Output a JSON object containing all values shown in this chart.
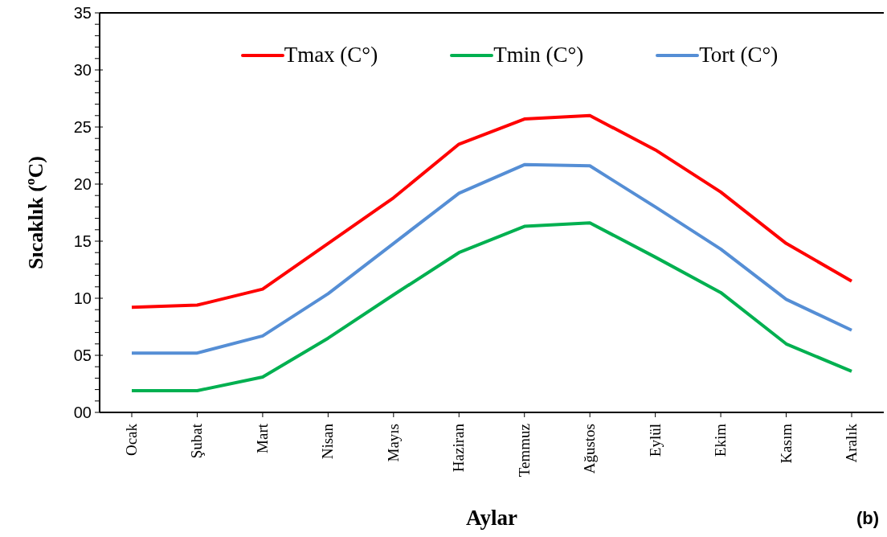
{
  "chart_data": {
    "type": "line",
    "xlabel": "Aylar",
    "ylabel": "Sıcaklık (ºC)",
    "annotations": [
      "(b)"
    ],
    "categories": [
      "Ocak",
      "Şubat",
      "Mart",
      "Nisan",
      "Mayıs",
      "Haziran",
      "Temmuz",
      "Ağustos",
      "Eylül",
      "Ekim",
      "Kasım",
      "Aralık"
    ],
    "series": [
      {
        "name": "Tmax (C°)",
        "color": "#ff0000",
        "values": [
          9.2,
          9.4,
          10.8,
          14.8,
          18.8,
          23.5,
          25.7,
          26.0,
          23.0,
          19.3,
          14.8,
          11.5
        ]
      },
      {
        "name": "Tmin (C°)",
        "color": "#00b050",
        "values": [
          1.9,
          1.9,
          3.1,
          6.5,
          10.3,
          14.0,
          16.3,
          16.6,
          13.6,
          10.5,
          6.0,
          3.6
        ]
      },
      {
        "name": "Tort (C°)",
        "color": "#558ed5",
        "values": [
          5.2,
          5.2,
          6.7,
          10.4,
          14.8,
          19.2,
          21.7,
          21.6,
          18.0,
          14.3,
          9.9,
          7.2
        ]
      }
    ],
    "ylim": [
      0,
      35
    ],
    "yticks": [
      {
        "value": 0,
        "label": "00"
      },
      {
        "value": 1,
        "label": null
      },
      {
        "value": 2,
        "label": null
      },
      {
        "value": 3,
        "label": null
      },
      {
        "value": 4,
        "label": null
      },
      {
        "value": 5,
        "label": "05"
      },
      {
        "value": 6,
        "label": null
      },
      {
        "value": 7,
        "label": null
      },
      {
        "value": 8,
        "label": null
      },
      {
        "value": 9,
        "label": null
      },
      10,
      {
        "value": 11,
        "label": null
      },
      {
        "value": 12,
        "label": null
      },
      {
        "value": 13,
        "label": null
      },
      {
        "value": 14,
        "label": null
      },
      15,
      {
        "value": 16,
        "label": null
      },
      {
        "value": 17,
        "label": null
      },
      {
        "value": 18,
        "label": null
      },
      {
        "value": 19,
        "label": null
      },
      20,
      {
        "value": 21,
        "label": null
      },
      {
        "value": 22,
        "label": null
      },
      {
        "value": 23,
        "label": null
      },
      {
        "value": 24,
        "label": null
      },
      25,
      {
        "value": 26,
        "label": null
      },
      {
        "value": 27,
        "label": null
      },
      {
        "value": 28,
        "label": null
      },
      {
        "value": 29,
        "label": null
      },
      30,
      {
        "value": 31,
        "label": null
      },
      {
        "value": 32,
        "label": null
      },
      {
        "value": 33,
        "label": null
      },
      {
        "value": 34,
        "label": null
      },
      35
    ],
    "grid": false,
    "legend": "top",
    "marker": "none",
    "line_style": "solid"
  }
}
